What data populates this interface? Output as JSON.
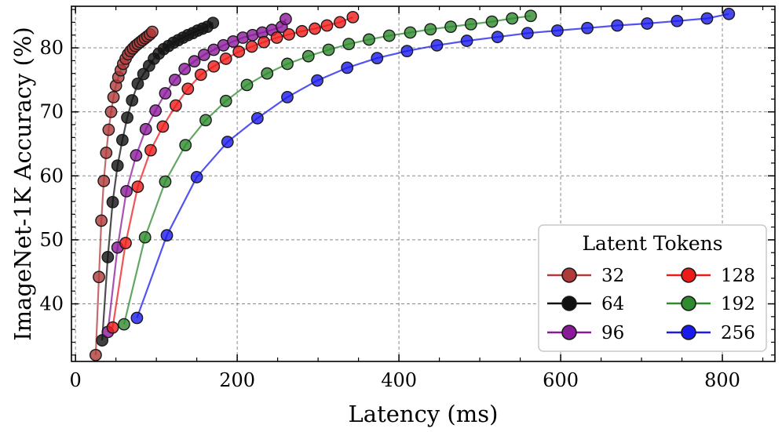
{
  "chart_data": {
    "type": "line",
    "title": "",
    "xlabel": "Latency (ms)",
    "ylabel": "ImageNet-1K Accuracy (%)",
    "xlim": [
      -5,
      865
    ],
    "ylim": [
      31,
      86.5
    ],
    "xticks": [
      0,
      200,
      400,
      600,
      800
    ],
    "yticks": [
      40,
      50,
      60,
      70,
      80
    ],
    "grid": true,
    "legend": {
      "title": "Latent Tokens",
      "location": "lower-right",
      "columns": 2
    },
    "series": [
      {
        "name": "32",
        "color": "#b03a3a",
        "x": [
          25,
          29,
          32,
          35,
          38,
          41,
          44,
          47,
          50,
          53,
          56,
          59,
          62,
          65,
          68,
          71,
          74,
          77,
          80,
          83,
          86,
          89,
          92,
          95
        ],
        "y": [
          32.0,
          44.2,
          53.0,
          59.2,
          63.6,
          67.2,
          70.0,
          72.3,
          74.1,
          75.4,
          76.5,
          77.5,
          78.3,
          79.0,
          79.5,
          79.9,
          80.3,
          80.6,
          80.9,
          81.2,
          81.5,
          81.8,
          82.1,
          82.5
        ]
      },
      {
        "name": "64",
        "color": "#111111",
        "x": [
          33,
          40,
          46,
          52,
          58,
          64,
          70,
          77,
          84,
          91,
          97,
          103,
          109,
          115,
          121,
          127,
          133,
          139,
          145,
          151,
          157,
          163,
          170
        ],
        "y": [
          34.3,
          47.3,
          55.9,
          61.6,
          65.6,
          69.1,
          71.8,
          74.4,
          75.9,
          77.2,
          78.3,
          79.1,
          79.8,
          80.3,
          80.8,
          81.2,
          81.6,
          82.0,
          82.3,
          82.7,
          83.0,
          83.3,
          83.9
        ]
      },
      {
        "name": "96",
        "color": "#8b1a9b",
        "x": [
          40,
          52,
          63,
          75,
          87,
          99,
          111,
          123,
          135,
          147,
          159,
          171,
          183,
          195,
          207,
          219,
          231,
          243,
          255,
          260
        ],
        "y": [
          35.6,
          48.8,
          57.6,
          63.2,
          67.3,
          70.2,
          72.9,
          75.0,
          76.7,
          77.9,
          78.9,
          79.7,
          80.4,
          81.0,
          81.6,
          82.0,
          82.4,
          82.8,
          83.3,
          84.5
        ]
      },
      {
        "name": "128",
        "color": "#ee1a1a",
        "x": [
          46,
          62,
          77,
          93,
          108,
          124,
          139,
          155,
          171,
          186,
          202,
          218,
          233,
          249,
          264,
          280,
          296,
          311,
          327,
          343
        ],
        "y": [
          36.3,
          49.5,
          58.3,
          64.0,
          67.7,
          71.0,
          73.6,
          75.8,
          77.1,
          78.3,
          79.4,
          80.2,
          80.9,
          81.6,
          82.1,
          82.6,
          83.0,
          83.5,
          84.0,
          84.8
        ]
      },
      {
        "name": "192",
        "color": "#2e8b2e",
        "x": [
          60,
          86,
          111,
          136,
          161,
          186,
          212,
          237,
          262,
          288,
          313,
          338,
          363,
          388,
          414,
          439,
          464,
          489,
          515,
          540,
          563
        ],
        "y": [
          36.8,
          50.4,
          59.1,
          64.8,
          68.7,
          71.7,
          74.2,
          76.0,
          77.5,
          78.7,
          79.7,
          80.6,
          81.3,
          81.9,
          82.4,
          82.9,
          83.3,
          83.7,
          84.1,
          84.6,
          85.0
        ]
      },
      {
        "name": "256",
        "color": "#1a1aee",
        "x": [
          76,
          113,
          150,
          188,
          225,
          262,
          299,
          336,
          373,
          410,
          447,
          484,
          522,
          559,
          596,
          633,
          670,
          707,
          744,
          781,
          808
        ],
        "y": [
          37.8,
          50.7,
          59.8,
          65.3,
          69.0,
          72.3,
          74.9,
          76.9,
          78.4,
          79.5,
          80.4,
          81.1,
          81.7,
          82.3,
          82.7,
          83.1,
          83.5,
          83.8,
          84.2,
          84.6,
          85.3
        ]
      }
    ]
  }
}
